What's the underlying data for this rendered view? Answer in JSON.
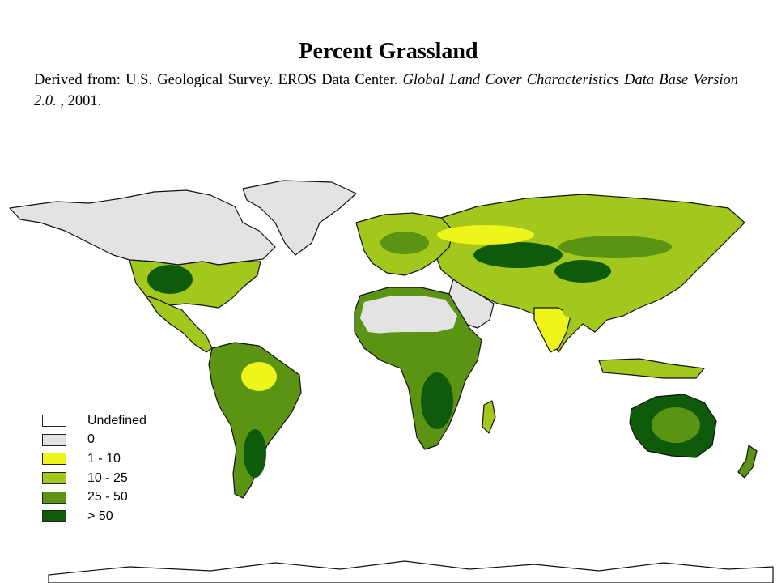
{
  "title": "Percent Grassland",
  "citation": {
    "prefix": "Derived from: U.S. Geological Survey. EROS Data Center. ",
    "italic": "Global Land Cover Characteristics Data Base Version 2.0. ",
    "suffix": ", 2001."
  },
  "legend": {
    "items": [
      {
        "label": "Undefined",
        "color": "#ffffff"
      },
      {
        "label": "0",
        "color": "#e3e3e3"
      },
      {
        "label": "1 - 10",
        "color": "#eef51a"
      },
      {
        "label": "10 - 25",
        "color": "#a3c81d"
      },
      {
        "label": "25 - 50",
        "color": "#5b9413"
      },
      {
        "label": "> 50",
        "color": "#0e5b0c"
      }
    ]
  },
  "map_colors": {
    "water": "#ffffff",
    "outline": "#111111",
    "none": "#e3e3e3",
    "low": "#eef51a",
    "mid": "#a3c81d",
    "high": "#5b9413",
    "veryhigh": "#0e5b0c"
  }
}
